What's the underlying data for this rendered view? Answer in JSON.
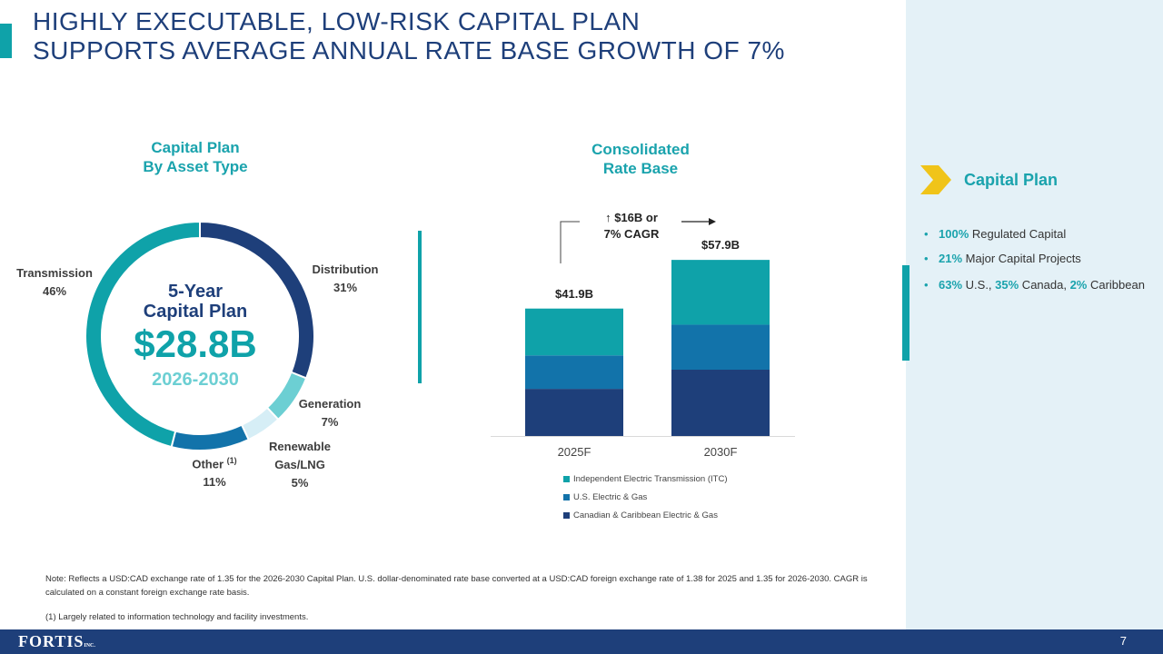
{
  "slide": {
    "title_line1": "HIGHLY EXECUTABLE, LOW-RISK CAPITAL PLAN",
    "title_line2": "SUPPORTS AVERAGE ANNUAL RATE BASE GROWTH OF 7%",
    "page_number": "7"
  },
  "donut": {
    "heading_line1": "Capital Plan",
    "heading_line2": "By Asset Type",
    "center_line1": "5-Year",
    "center_line2": "Capital Plan",
    "center_value": "$28.8B",
    "center_years": "2026-2030",
    "labels": {
      "distribution_name": "Distribution",
      "distribution_pct": "31%",
      "generation_name": "Generation",
      "generation_pct": "7%",
      "renewable_name_1": "Renewable",
      "renewable_name_2": "Gas/LNG",
      "renewable_pct": "5%",
      "other_name": "Other",
      "other_note": "(1)",
      "other_pct": "11%",
      "transmission_name": "Transmission",
      "transmission_pct": "46%"
    }
  },
  "ratebase": {
    "heading_line1": "Consolidated",
    "heading_line2": "Rate Base",
    "cagr_line1": "↑ $16B or",
    "cagr_line2": "7% CAGR",
    "total_2025": "$41.9B",
    "total_2030": "$57.9B",
    "cat_2025": "2025F",
    "cat_2030": "2030F",
    "legend_itc": "Independent Electric Transmission (ITC)",
    "legend_us": "U.S. Electric & Gas",
    "legend_cdn": "Canadian & Caribbean Electric & Gas"
  },
  "capital_plan_panel": {
    "title": "Capital Plan",
    "b1_hl": "100%",
    "b1_text": " Regulated Capital",
    "b2_hl": "21%",
    "b2_text": " Major Capital Projects",
    "b3_hl1": "63%",
    "b3_t1": " U.S., ",
    "b3_hl2": "35%",
    "b3_t2": " Canada, ",
    "b3_hl3": "2%",
    "b3_t3": " Caribbean"
  },
  "notes": {
    "note": "Note:  Reflects a USD:CAD exchange rate of 1.35 for the 2026-2030 Capital Plan. U.S. dollar-denominated rate base converted at a USD:CAD foreign exchange rate of 1.38 for 2025 and 1.35 for 2026-2030. CAGR is calculated on a constant foreign exchange rate basis.",
    "footnote": "(1)    Largely related to information technology and facility investments."
  },
  "footer": {
    "logo": "FORTIS",
    "logo_suffix": "INC."
  },
  "colors": {
    "navy": "#1e3f7a",
    "teal": "#0fa2a9",
    "mid_blue": "#1273aa",
    "light_teal": "#6ccfd3",
    "pale_blue": "#d6eef6"
  },
  "chart_data": [
    {
      "type": "pie",
      "title": "Capital Plan By Asset Type",
      "total_label": "$28.8B",
      "categories": [
        "Distribution",
        "Generation",
        "Renewable Gas/LNG",
        "Other",
        "Transmission"
      ],
      "values": [
        31,
        7,
        5,
        11,
        46
      ],
      "unit": "%",
      "colors": [
        "#1e3f7a",
        "#6ccfd3",
        "#d6eef6",
        "#1273aa",
        "#0fa2a9"
      ]
    },
    {
      "type": "bar",
      "stacked": true,
      "title": "Consolidated Rate Base",
      "categories": [
        "2025F",
        "2030F"
      ],
      "series": [
        {
          "name": "Canadian & Caribbean Electric & Gas",
          "values": [
            15.5,
            21.8
          ],
          "color": "#1e3f7a"
        },
        {
          "name": "U.S. Electric & Gas",
          "values": [
            11.0,
            14.8
          ],
          "color": "#1273aa"
        },
        {
          "name": "Independent Electric Transmission (ITC)",
          "values": [
            15.4,
            21.3
          ],
          "color": "#0fa2a9"
        }
      ],
      "totals": [
        41.9,
        57.9
      ],
      "ylim": [
        0,
        66
      ]
    }
  ]
}
